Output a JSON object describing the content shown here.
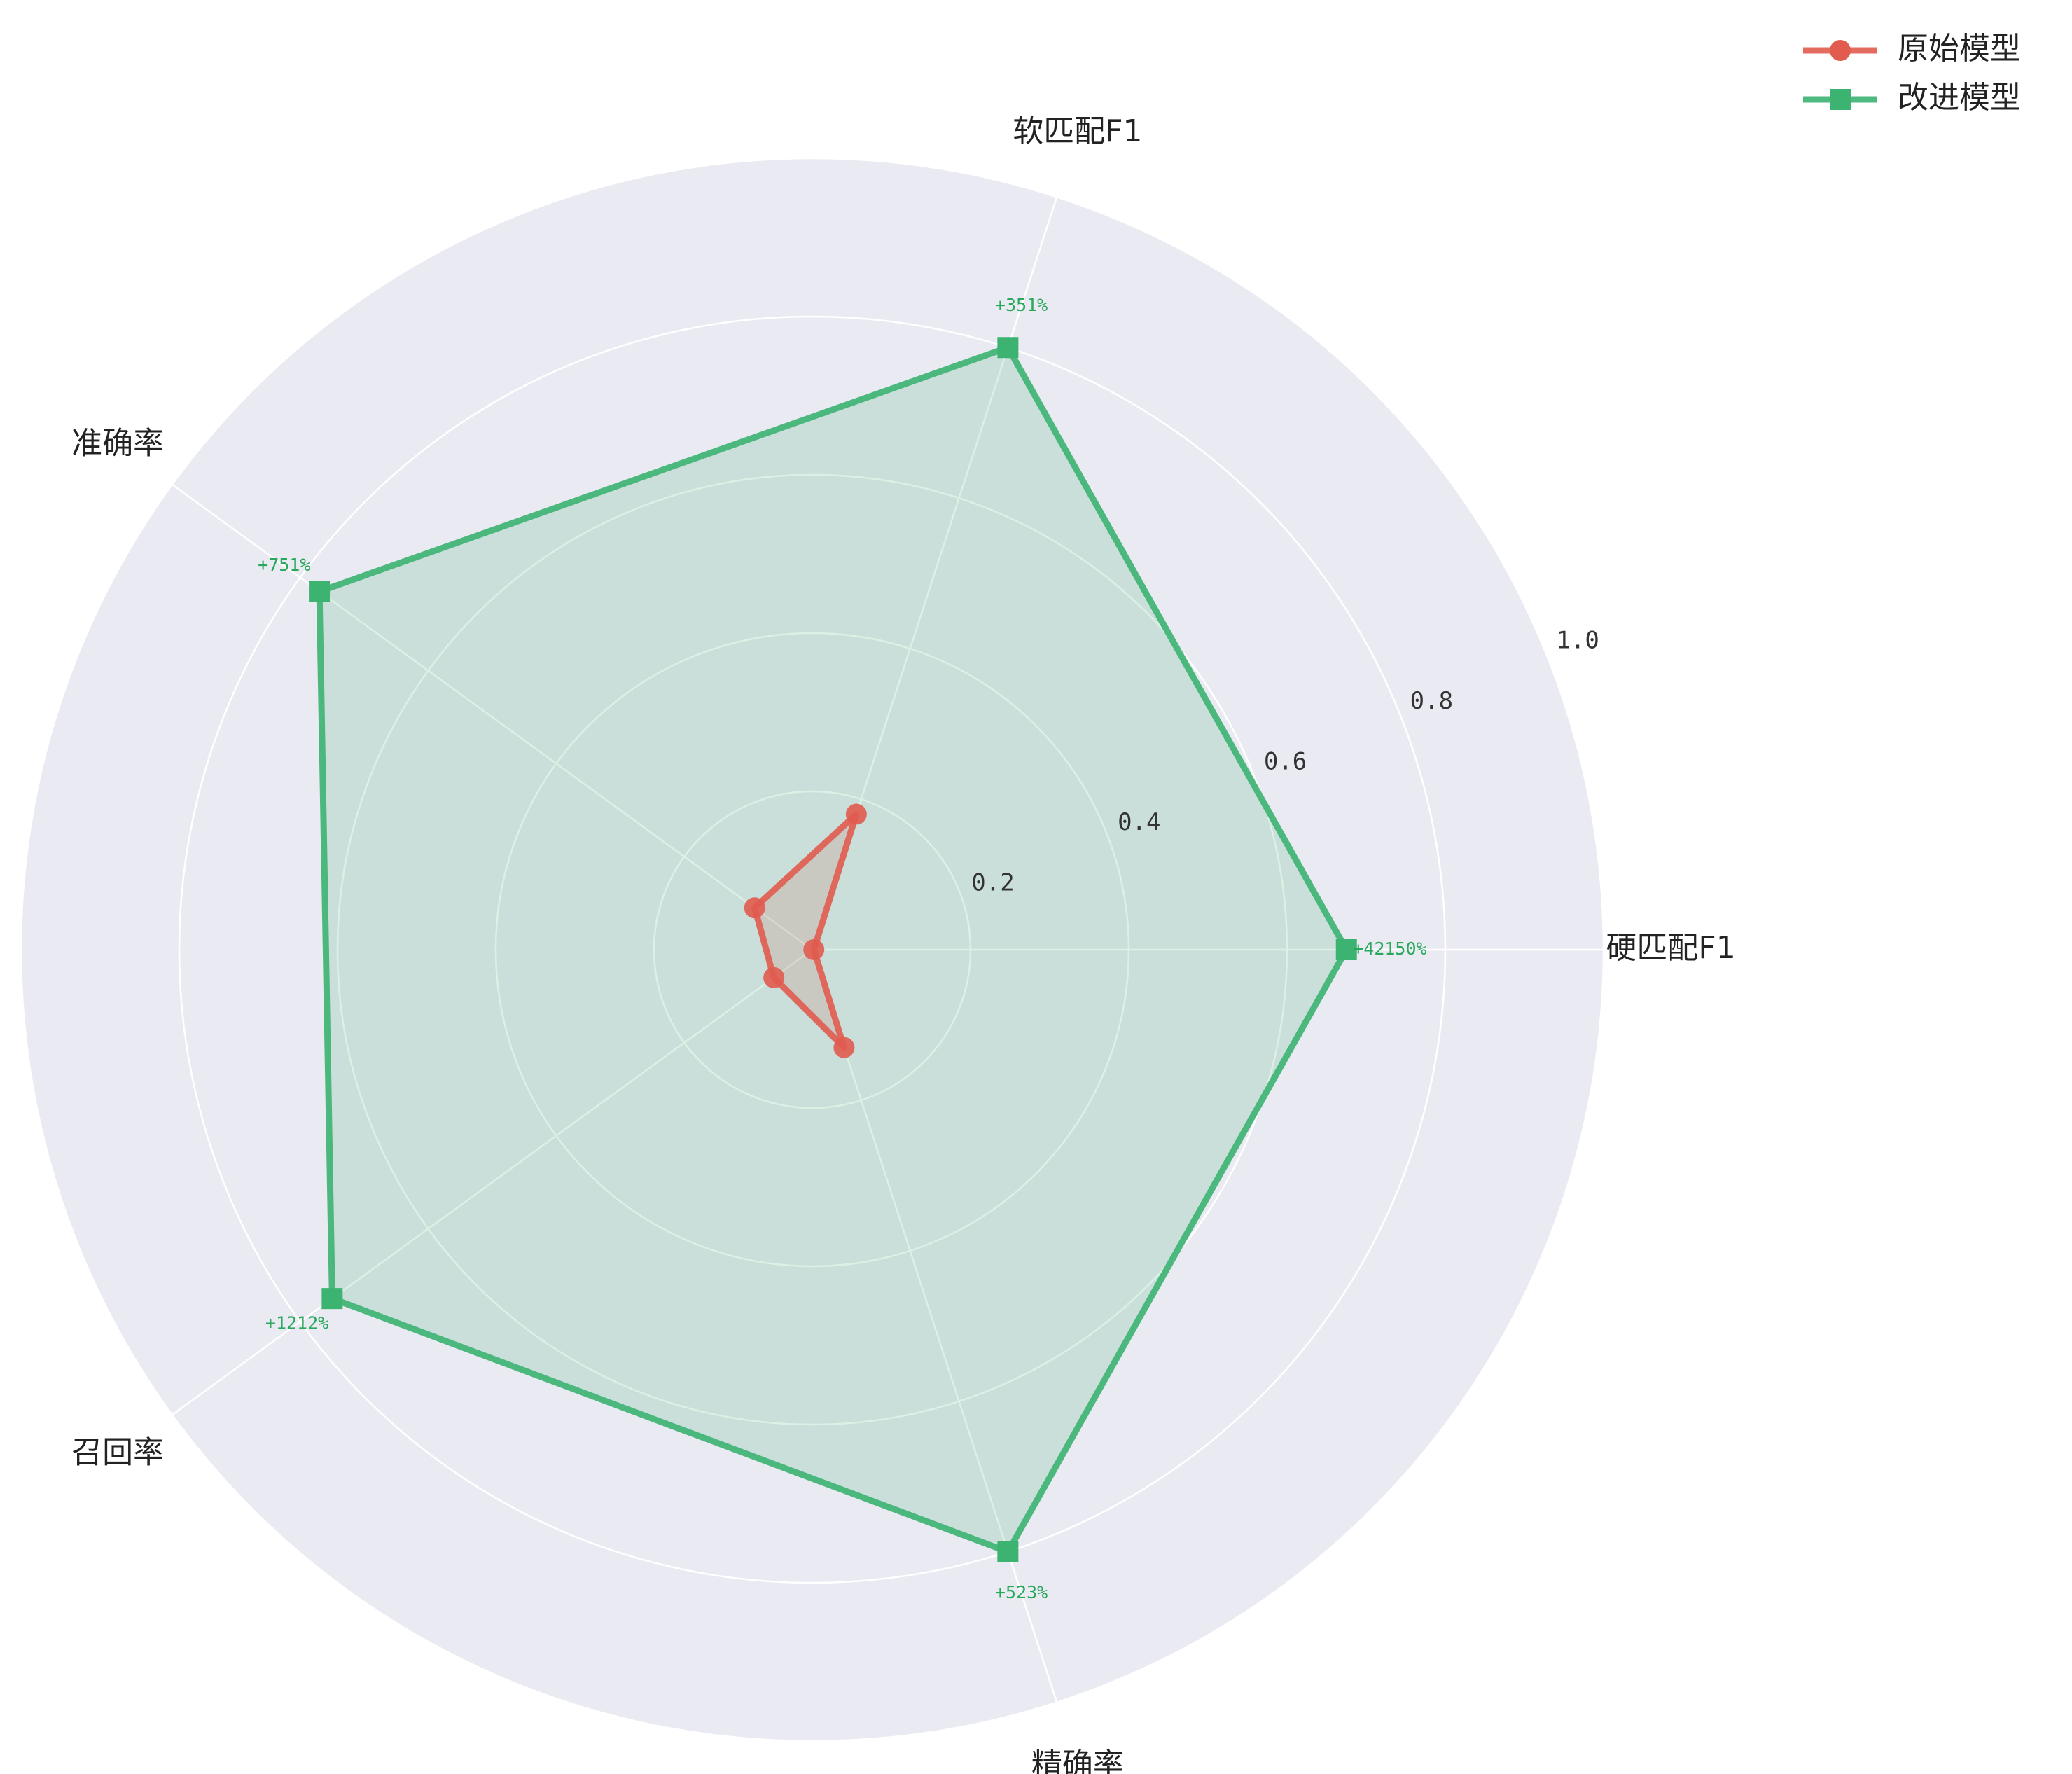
{
  "chart_data": {
    "type": "radar",
    "title": "",
    "axes": [
      "硬匹配F1",
      "软匹配F1",
      "准确率",
      "召回率",
      "精确率"
    ],
    "rlim": [
      0,
      1.0
    ],
    "rticks": [
      0.2,
      0.4,
      0.6,
      0.8,
      1.0
    ],
    "rtick_labels": [
      "0.2",
      "0.4",
      "0.6",
      "0.8",
      "1.0"
    ],
    "grid": true,
    "legend_position": "top-right",
    "series": [
      {
        "name": "原始模型",
        "values": [
          0.002,
          0.18,
          0.09,
          0.06,
          0.13
        ],
        "color": "#e15b4f",
        "marker": "circle"
      },
      {
        "name": "改进模型",
        "values": [
          0.675,
          0.8,
          0.77,
          0.75,
          0.8
        ],
        "color": "#3cb371",
        "marker": "square"
      }
    ],
    "annotations": [
      "+42150%",
      "+351%",
      "+751%",
      "+1212%",
      "+523%"
    ],
    "annotation_color": "#27a85b"
  }
}
